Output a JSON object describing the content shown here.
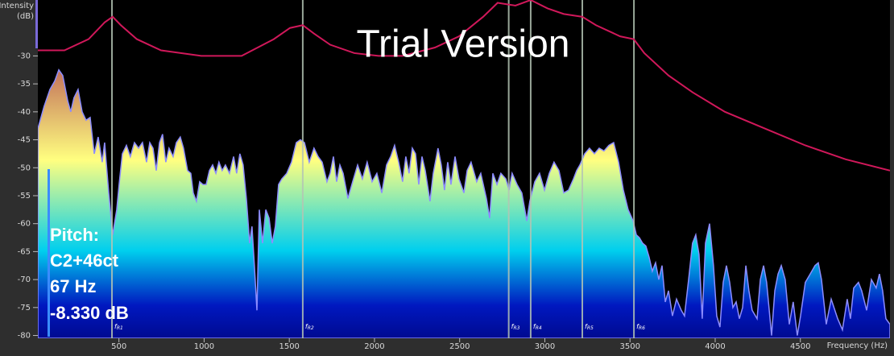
{
  "chart_data": {
    "type": "spectrum",
    "y_label_lines": [
      "Intensity",
      "(dB)"
    ],
    "x_label": "Frequency (Hz)",
    "xlim": [
      24,
      5026
    ],
    "ylim": [
      -80.5,
      -20
    ],
    "xticks": [
      500,
      1000,
      1500,
      2000,
      2500,
      3000,
      3500,
      4000,
      4500
    ],
    "yticks": [
      -30,
      -35,
      -40,
      -45,
      -50,
      -55,
      -60,
      -65,
      -70,
      -75,
      -80
    ],
    "series": [
      {
        "type": "area",
        "stroke": "#8c8cff",
        "gradient": [
          "#c06a58",
          "#ffff80",
          "#00cfee",
          "#0018c0",
          "#000a90"
        ],
        "x": [
          24,
          61,
          95,
          123,
          147,
          170,
          199,
          217,
          236,
          260,
          284,
          307,
          331,
          355,
          378,
          402,
          416,
          440,
          463,
          487,
          501,
          520,
          544,
          567,
          591,
          615,
          638,
          662,
          681,
          700,
          719,
          738,
          756,
          775,
          794,
          818,
          837,
          860,
          879,
          903,
          922,
          936,
          955,
          974,
          993,
          1012,
          1031,
          1050,
          1069,
          1087,
          1106,
          1125,
          1149,
          1173,
          1191,
          1210,
          1229,
          1248,
          1267,
          1281,
          1295,
          1310,
          1324,
          1343,
          1362,
          1381,
          1400,
          1418,
          1437,
          1456,
          1485,
          1513,
          1541,
          1565,
          1589,
          1617,
          1645,
          1669,
          1693,
          1721,
          1740,
          1759,
          1778,
          1797,
          1816,
          1844,
          1872,
          1901,
          1929,
          1957,
          1986,
          2014,
          2043,
          2071,
          2095,
          2118,
          2142,
          2165,
          2184,
          2203,
          2222,
          2241,
          2260,
          2279,
          2298,
          2326,
          2345,
          2373,
          2392,
          2411,
          2430,
          2449,
          2473,
          2496,
          2525,
          2544,
          2567,
          2600,
          2624,
          2657,
          2676,
          2695,
          2719,
          2742,
          2771,
          2790,
          2808,
          2837,
          2865,
          2894,
          2912,
          2941,
          2969,
          2998,
          3026,
          3054,
          3083,
          3111,
          3139,
          3168,
          3187,
          3206,
          3234,
          3262,
          3291,
          3319,
          3347,
          3376,
          3404,
          3433,
          3461,
          3489,
          3518,
          3537,
          3555,
          3574,
          3593,
          3612,
          3631,
          3650,
          3669,
          3688,
          3707,
          3726,
          3749,
          3773,
          3801,
          3820,
          3844,
          3867,
          3886,
          3905,
          3924,
          3943,
          3967,
          3990,
          4009,
          4028,
          4047,
          4066,
          4085,
          4104,
          4123,
          4142,
          4161,
          4180,
          4198,
          4217,
          4246,
          4265,
          4284,
          4302,
          4331,
          4350,
          4369,
          4388,
          4411,
          4435,
          4458,
          4482,
          4501,
          4529,
          4558,
          4586,
          4605,
          4624,
          4652,
          4681,
          4719,
          4747,
          4775,
          4794,
          4813,
          4841,
          4860,
          4889,
          4917,
          4945,
          4964,
          4983,
          5002,
          5026
        ],
        "values": [
          -43,
          -39,
          -36,
          -34.5,
          -32.5,
          -33.5,
          -38,
          -40,
          -37.5,
          -36,
          -40,
          -41.5,
          -41,
          -47.5,
          -44.5,
          -49,
          -45.5,
          -54.5,
          -62,
          -57.5,
          -53,
          -47.5,
          -46,
          -48,
          -45.5,
          -46.5,
          -45.5,
          -49,
          -45.5,
          -46.5,
          -50.5,
          -45.5,
          -44,
          -49,
          -46.5,
          -48,
          -45.5,
          -44.5,
          -46.5,
          -50.5,
          -51,
          -54.5,
          -56,
          -52.5,
          -53,
          -53,
          -50.5,
          -49.5,
          -51,
          -49,
          -50.5,
          -49.5,
          -51,
          -48,
          -51,
          -47.5,
          -49.5,
          -55.5,
          -63.5,
          -60.5,
          -67.5,
          -75.5,
          -57.5,
          -63.5,
          -57.5,
          -59,
          -63.5,
          -60.5,
          -53,
          -52,
          -51,
          -49,
          -45.5,
          -45,
          -45.5,
          -49,
          -46.5,
          -48,
          -49,
          -52.5,
          -51,
          -48,
          -52.5,
          -49.5,
          -51,
          -55.5,
          -52.5,
          -49.5,
          -52,
          -49,
          -52.5,
          -51,
          -54.5,
          -49.5,
          -48,
          -46,
          -49,
          -52.5,
          -48,
          -51,
          -46.5,
          -47.5,
          -53,
          -48,
          -50.5,
          -56,
          -51,
          -46.5,
          -49.5,
          -54,
          -49,
          -53,
          -48,
          -52,
          -54.5,
          -50.5,
          -49,
          -52.5,
          -51,
          -55.5,
          -59,
          -51,
          -53,
          -51,
          -52,
          -54,
          -51,
          -53,
          -54.5,
          -59.5,
          -56,
          -52.5,
          -51,
          -54,
          -51,
          -49,
          -50.5,
          -54.5,
          -54,
          -52,
          -50.5,
          -49.5,
          -47.5,
          -46.5,
          -47.5,
          -46.5,
          -47,
          -46,
          -45.5,
          -49,
          -54,
          -57.5,
          -59.5,
          -62,
          -62.5,
          -63.5,
          -64,
          -66,
          -68.5,
          -67,
          -70,
          -67.5,
          -74,
          -72,
          -76.5,
          -73.5,
          -75.5,
          -76.5,
          -70,
          -63.5,
          -62,
          -65.5,
          -77,
          -63.5,
          -60,
          -67.5,
          -76.5,
          -78.5,
          -70.5,
          -67.5,
          -70.5,
          -75,
          -74,
          -77,
          -75,
          -67.5,
          -72,
          -75.5,
          -77,
          -70,
          -67.5,
          -70.5,
          -80,
          -72,
          -69,
          -67.5,
          -70,
          -78,
          -74,
          -80,
          -76.5,
          -70.5,
          -69,
          -67.5,
          -67,
          -70,
          -78,
          -73.5,
          -77,
          -79,
          -73.5,
          -77,
          -71.5,
          -70.5,
          -72,
          -75.5,
          -70,
          -71.5,
          -69,
          -72,
          -77,
          -78
        ]
      },
      {
        "type": "line",
        "color": "#d0185a",
        "x": [
          24,
          180,
          322,
          416,
          463,
          511,
          605,
          747,
          983,
          1220,
          1409,
          1504,
          1579,
          1645,
          1740,
          1882,
          2024,
          2165,
          2355,
          2496,
          2638,
          2723,
          2827,
          2917,
          3016,
          3111,
          3220,
          3300,
          3442,
          3522,
          3584,
          3726,
          3867,
          4057,
          4293,
          4529,
          4766,
          5026
        ],
        "values": [
          -29,
          -29,
          -27,
          -24,
          -23,
          -24.5,
          -27,
          -29,
          -30,
          -30,
          -27,
          -25,
          -24.5,
          -26,
          -28,
          -29.5,
          -30,
          -30,
          -28.5,
          -26.5,
          -23,
          -20.5,
          -21,
          -20,
          -21.5,
          -22.5,
          -23,
          -24.5,
          -26.5,
          -27,
          -29.5,
          -33.5,
          -36.5,
          -40,
          -43,
          -46,
          -48.5,
          -50.5
        ]
      }
    ],
    "formants": {
      "symbol": "f",
      "color": "#b4c4b4",
      "markers": [
        {
          "sub": "R1",
          "x": 459
        },
        {
          "sub": "R2",
          "x": 1579
        },
        {
          "sub": "R3",
          "x": 2788
        },
        {
          "sub": "R4",
          "x": 2917
        },
        {
          "sub": "R5",
          "x": 3220
        },
        {
          "sub": "R6",
          "x": 3523
        }
      ]
    }
  },
  "readout": {
    "label": "Pitch:",
    "note": "C2+46ct",
    "frequency": "67 Hz",
    "level": "-8.330 dB"
  },
  "watermark": "Trial Version"
}
